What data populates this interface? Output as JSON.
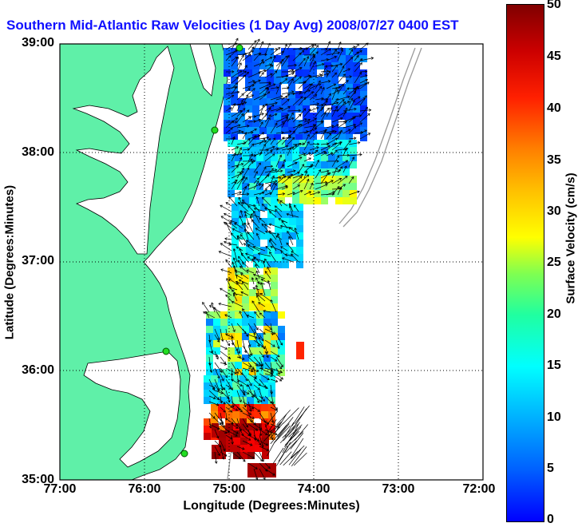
{
  "title": "Southern Mid-Atlantic Raw Velocities (1 Day Avg) 2008/07/27 0400 EST",
  "axes": {
    "xlabel": "Longitude (Degrees:Minutes)",
    "ylabel": "Latitude (Degrees:Minutes)",
    "xticks": [
      "77:00",
      "76:00",
      "75:00",
      "74:00",
      "73:00",
      "72:00"
    ],
    "yticks": [
      "39:00",
      "38:00",
      "37:00",
      "36:00",
      "35:00"
    ],
    "xlim": [
      -77,
      -72
    ],
    "ylim": [
      35,
      39
    ],
    "grid": "dotted"
  },
  "colorbar": {
    "label": "Surface Velocity (cm/s)",
    "ticks": [
      "50",
      "45",
      "40",
      "35",
      "30",
      "25",
      "20",
      "15",
      "10",
      "5",
      "0"
    ],
    "range": [
      0,
      50
    ],
    "colormap": "jet"
  },
  "colors": {
    "land": "#5ff0a8",
    "title": "#1010ff",
    "bathymetry": "#9a9a9a"
  },
  "stations": [
    {
      "lat": 38.98,
      "lon": -74.88
    },
    {
      "lat": 38.2,
      "lon": -75.17
    },
    {
      "lat": 36.18,
      "lon": -75.75
    },
    {
      "lat": 35.25,
      "lon": -75.52
    }
  ]
}
